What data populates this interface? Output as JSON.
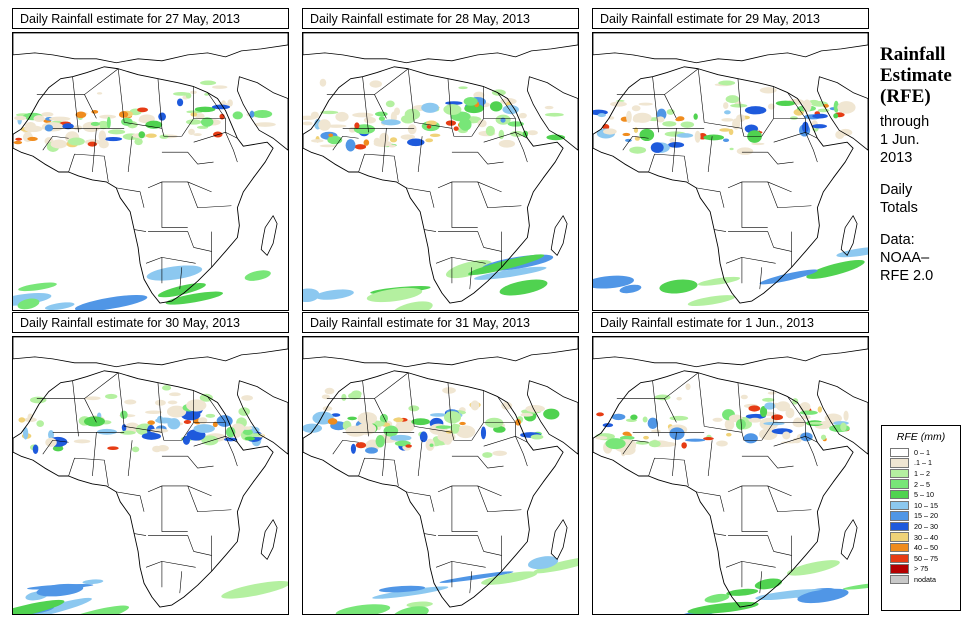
{
  "panels": [
    {
      "title": "Daily Rainfall estimate for  27 May, 2013",
      "seed": 27
    },
    {
      "title": "Daily Rainfall estimate for  28 May, 2013",
      "seed": 28
    },
    {
      "title": "Daily Rainfall estimate for  29 May, 2013",
      "seed": 29
    },
    {
      "title": "Daily Rainfall estimate for  30 May, 2013",
      "seed": 30
    },
    {
      "title": "Daily Rainfall estimate for  31 May, 2013",
      "seed": 31
    },
    {
      "title": "Daily Rainfall estimate for  1 Jun., 2013",
      "seed": 1
    }
  ],
  "side": {
    "heading1": "Rainfall",
    "heading2": "Estimate",
    "heading3": "(RFE)",
    "through": "through",
    "date1": "1 Jun.",
    "date2": "2013",
    "totals1": "Daily",
    "totals2": "Totals",
    "data1": "Data:",
    "data2": "NOAA–",
    "data3": "RFE 2.0"
  },
  "legend": {
    "title": "RFE (mm)",
    "items": [
      {
        "label": "0 – 1",
        "color": "#ffffff"
      },
      {
        "label": ".1 – 1",
        "color": "#f0e6d2"
      },
      {
        "label": "1 – 2",
        "color": "#b4f0a0"
      },
      {
        "label": "2 – 5",
        "color": "#78e678"
      },
      {
        "label": "5 – 10",
        "color": "#50d250"
      },
      {
        "label": "10 – 15",
        "color": "#8cc8f0"
      },
      {
        "label": "15 – 20",
        "color": "#5096e6"
      },
      {
        "label": "20 – 30",
        "color": "#1e5adc"
      },
      {
        "label": "30 – 40",
        "color": "#f0d278"
      },
      {
        "label": "40 – 50",
        "color": "#f08c1e"
      },
      {
        "label": "50 – 75",
        "color": "#e63c14"
      },
      {
        "label": "> 75",
        "color": "#b40000"
      },
      {
        "label": "nodata",
        "color": "#c8c8c8"
      }
    ]
  }
}
